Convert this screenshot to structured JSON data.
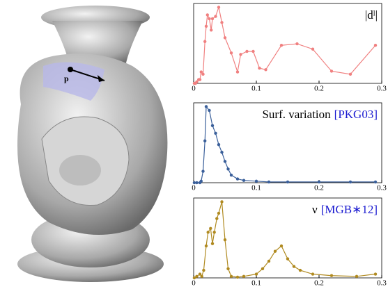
{
  "image": {
    "label": "p"
  },
  "chart_data": [
    {
      "type": "line",
      "title": "|dˡ|",
      "color": "#f08080",
      "x": [
        0.001,
        0.003,
        0.005,
        0.008,
        0.01,
        0.012,
        0.015,
        0.018,
        0.02,
        0.022,
        0.025,
        0.028,
        0.03,
        0.035,
        0.04,
        0.045,
        0.05,
        0.06,
        0.07,
        0.075,
        0.085,
        0.095,
        0.105,
        0.115,
        0.14,
        0.165,
        0.19,
        0.22,
        0.25,
        0.29
      ],
      "values": [
        0,
        0,
        0.02,
        0.05,
        0.05,
        0.15,
        0.12,
        0.55,
        0.75,
        0.9,
        0.85,
        0.7,
        0.85,
        0.88,
        1.0,
        0.8,
        0.6,
        0.4,
        0.15,
        0.38,
        0.42,
        0.42,
        0.2,
        0.18,
        0.5,
        0.52,
        0.45,
        0.16,
        0.12,
        0.5
      ],
      "xlim": [
        0,
        0.3
      ],
      "xticks": [
        0,
        0.1,
        0.2,
        0.3
      ],
      "ylim": [
        0,
        1.05
      ]
    },
    {
      "type": "line",
      "title": "Surf. variation",
      "citation": "[PKG03]",
      "color": "#3a5f9a",
      "x": [
        0.001,
        0.005,
        0.01,
        0.012,
        0.015,
        0.018,
        0.02,
        0.025,
        0.03,
        0.035,
        0.04,
        0.045,
        0.05,
        0.055,
        0.06,
        0.07,
        0.08,
        0.1,
        0.12,
        0.15,
        0.2,
        0.25,
        0.29
      ],
      "values": [
        0,
        0,
        0,
        0.02,
        0.15,
        0.55,
        1.0,
        0.95,
        0.75,
        0.65,
        0.5,
        0.4,
        0.28,
        0.18,
        0.1,
        0.05,
        0.03,
        0.02,
        0.01,
        0.01,
        0.01,
        0.01,
        0.01
      ],
      "xlim": [
        0,
        0.3
      ],
      "xticks": [
        0,
        0.1,
        0.2,
        0.3
      ],
      "ylim": [
        0,
        1.05
      ]
    },
    {
      "type": "line",
      "title": "ν",
      "citation": "[MGB∗12]",
      "color": "#b08a20",
      "x": [
        0.001,
        0.005,
        0.01,
        0.013,
        0.016,
        0.02,
        0.023,
        0.027,
        0.03,
        0.033,
        0.037,
        0.04,
        0.045,
        0.05,
        0.055,
        0.06,
        0.07,
        0.08,
        0.1,
        0.11,
        0.12,
        0.13,
        0.14,
        0.15,
        0.16,
        0.17,
        0.19,
        0.22,
        0.26,
        0.29
      ],
      "values": [
        0,
        0.02,
        0.05,
        0.02,
        0.1,
        0.42,
        0.6,
        0.65,
        0.45,
        0.6,
        0.78,
        0.85,
        1.0,
        0.5,
        0.12,
        0.02,
        0.01,
        0.02,
        0.05,
        0.12,
        0.22,
        0.35,
        0.42,
        0.25,
        0.15,
        0.1,
        0.05,
        0.03,
        0.02,
        0.05
      ],
      "xlim": [
        0,
        0.3
      ],
      "xticks": [
        0,
        0.1,
        0.2,
        0.3
      ],
      "ylim": [
        0,
        1.05
      ]
    }
  ]
}
